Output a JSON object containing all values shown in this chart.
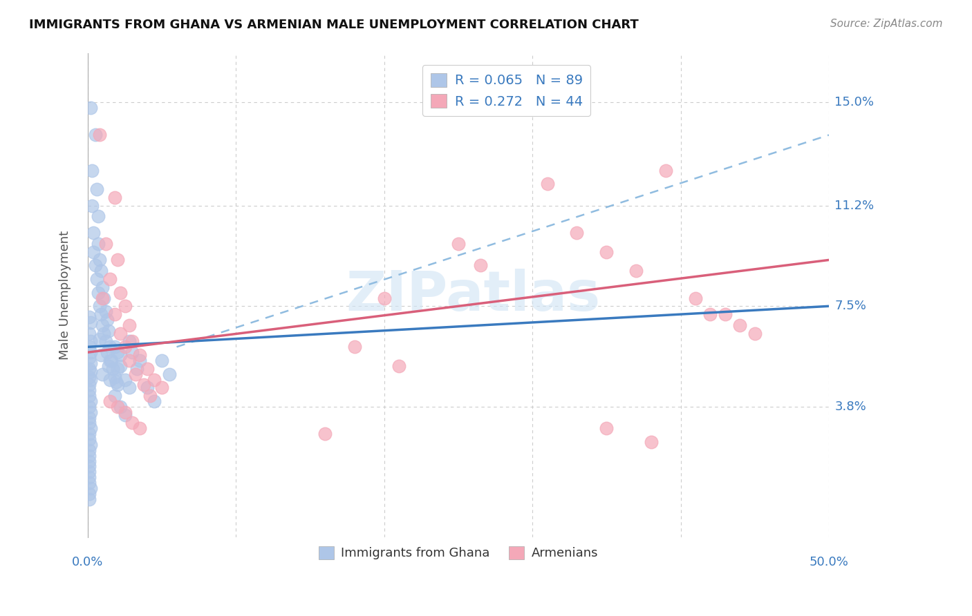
{
  "title": "IMMIGRANTS FROM GHANA VS ARMENIAN MALE UNEMPLOYMENT CORRELATION CHART",
  "source": "Source: ZipAtlas.com",
  "ylabel": "Male Unemployment",
  "xlim": [
    0.0,
    0.5
  ],
  "ylim": [
    -0.01,
    0.168
  ],
  "ytick_labels": [
    "3.8%",
    "7.5%",
    "11.2%",
    "15.0%"
  ],
  "ytick_values": [
    0.038,
    0.075,
    0.112,
    0.15
  ],
  "xtick_values": [
    0.0,
    0.1,
    0.2,
    0.3,
    0.4,
    0.5
  ],
  "watermark": "ZIPatlas",
  "ghana_color": "#aec6e8",
  "armenian_color": "#f4a8b8",
  "ghana_line_color": "#3a7abf",
  "armenian_line_color": "#d95f7a",
  "dash_color": "#90bce0",
  "ghana_N": 89,
  "armenian_N": 44,
  "ghana_R": 0.065,
  "armenian_R": 0.272,
  "ghana_scatter": [
    [
      0.002,
      0.148
    ],
    [
      0.005,
      0.138
    ],
    [
      0.003,
      0.125
    ],
    [
      0.006,
      0.118
    ],
    [
      0.003,
      0.112
    ],
    [
      0.007,
      0.108
    ],
    [
      0.004,
      0.102
    ],
    [
      0.007,
      0.098
    ],
    [
      0.004,
      0.095
    ],
    [
      0.008,
      0.092
    ],
    [
      0.005,
      0.09
    ],
    [
      0.009,
      0.088
    ],
    [
      0.006,
      0.085
    ],
    [
      0.01,
      0.082
    ],
    [
      0.007,
      0.08
    ],
    [
      0.011,
      0.078
    ],
    [
      0.008,
      0.075
    ],
    [
      0.012,
      0.073
    ],
    [
      0.009,
      0.072
    ],
    [
      0.013,
      0.07
    ],
    [
      0.01,
      0.068
    ],
    [
      0.014,
      0.066
    ],
    [
      0.011,
      0.065
    ],
    [
      0.008,
      0.063
    ],
    [
      0.012,
      0.062
    ],
    [
      0.015,
      0.06
    ],
    [
      0.013,
      0.058
    ],
    [
      0.009,
      0.057
    ],
    [
      0.016,
      0.055
    ],
    [
      0.014,
      0.053
    ],
    [
      0.017,
      0.052
    ],
    [
      0.01,
      0.05
    ],
    [
      0.018,
      0.049
    ],
    [
      0.015,
      0.048
    ],
    [
      0.019,
      0.047
    ],
    [
      0.02,
      0.046
    ],
    [
      0.001,
      0.071
    ],
    [
      0.002,
      0.069
    ],
    [
      0.001,
      0.065
    ],
    [
      0.002,
      0.062
    ],
    [
      0.001,
      0.06
    ],
    [
      0.002,
      0.058
    ],
    [
      0.001,
      0.056
    ],
    [
      0.002,
      0.054
    ],
    [
      0.001,
      0.052
    ],
    [
      0.002,
      0.051
    ],
    [
      0.001,
      0.049
    ],
    [
      0.002,
      0.048
    ],
    [
      0.001,
      0.046
    ],
    [
      0.001,
      0.044
    ],
    [
      0.001,
      0.042
    ],
    [
      0.002,
      0.04
    ],
    [
      0.001,
      0.038
    ],
    [
      0.002,
      0.036
    ],
    [
      0.001,
      0.034
    ],
    [
      0.001,
      0.032
    ],
    [
      0.002,
      0.03
    ],
    [
      0.001,
      0.028
    ],
    [
      0.001,
      0.026
    ],
    [
      0.002,
      0.024
    ],
    [
      0.001,
      0.022
    ],
    [
      0.001,
      0.02
    ],
    [
      0.001,
      0.018
    ],
    [
      0.001,
      0.016
    ],
    [
      0.001,
      0.014
    ],
    [
      0.001,
      0.012
    ],
    [
      0.001,
      0.01
    ],
    [
      0.002,
      0.008
    ],
    [
      0.001,
      0.006
    ],
    [
      0.001,
      0.004
    ],
    [
      0.022,
      0.038
    ],
    [
      0.025,
      0.035
    ],
    [
      0.03,
      0.058
    ],
    [
      0.033,
      0.052
    ],
    [
      0.035,
      0.055
    ],
    [
      0.04,
      0.045
    ],
    [
      0.045,
      0.04
    ],
    [
      0.05,
      0.055
    ],
    [
      0.055,
      0.05
    ],
    [
      0.018,
      0.042
    ],
    [
      0.02,
      0.058
    ],
    [
      0.022,
      0.053
    ],
    [
      0.025,
      0.048
    ],
    [
      0.028,
      0.062
    ],
    [
      0.015,
      0.055
    ],
    [
      0.018,
      0.06
    ],
    [
      0.02,
      0.052
    ],
    [
      0.022,
      0.057
    ],
    [
      0.028,
      0.045
    ]
  ],
  "armenian_scatter": [
    [
      0.008,
      0.138
    ],
    [
      0.018,
      0.115
    ],
    [
      0.012,
      0.098
    ],
    [
      0.02,
      0.092
    ],
    [
      0.015,
      0.085
    ],
    [
      0.022,
      0.08
    ],
    [
      0.01,
      0.078
    ],
    [
      0.025,
      0.075
    ],
    [
      0.018,
      0.072
    ],
    [
      0.028,
      0.068
    ],
    [
      0.022,
      0.065
    ],
    [
      0.03,
      0.062
    ],
    [
      0.025,
      0.06
    ],
    [
      0.035,
      0.057
    ],
    [
      0.028,
      0.055
    ],
    [
      0.04,
      0.052
    ],
    [
      0.032,
      0.05
    ],
    [
      0.045,
      0.048
    ],
    [
      0.038,
      0.046
    ],
    [
      0.05,
      0.045
    ],
    [
      0.042,
      0.042
    ],
    [
      0.015,
      0.04
    ],
    [
      0.02,
      0.038
    ],
    [
      0.025,
      0.036
    ],
    [
      0.03,
      0.032
    ],
    [
      0.035,
      0.03
    ],
    [
      0.31,
      0.12
    ],
    [
      0.33,
      0.102
    ],
    [
      0.35,
      0.095
    ],
    [
      0.37,
      0.088
    ],
    [
      0.39,
      0.125
    ],
    [
      0.41,
      0.078
    ],
    [
      0.42,
      0.072
    ],
    [
      0.44,
      0.068
    ],
    [
      0.43,
      0.072
    ],
    [
      0.45,
      0.065
    ],
    [
      0.25,
      0.098
    ],
    [
      0.265,
      0.09
    ],
    [
      0.2,
      0.078
    ],
    [
      0.18,
      0.06
    ],
    [
      0.16,
      0.028
    ],
    [
      0.21,
      0.053
    ],
    [
      0.35,
      0.03
    ],
    [
      0.38,
      0.025
    ]
  ],
  "ghana_line": [
    0.0,
    0.5,
    0.06,
    0.075
  ],
  "armenian_line": [
    0.0,
    0.5,
    0.058,
    0.092
  ],
  "dash_line": [
    0.06,
    0.5,
    0.06,
    0.138
  ]
}
